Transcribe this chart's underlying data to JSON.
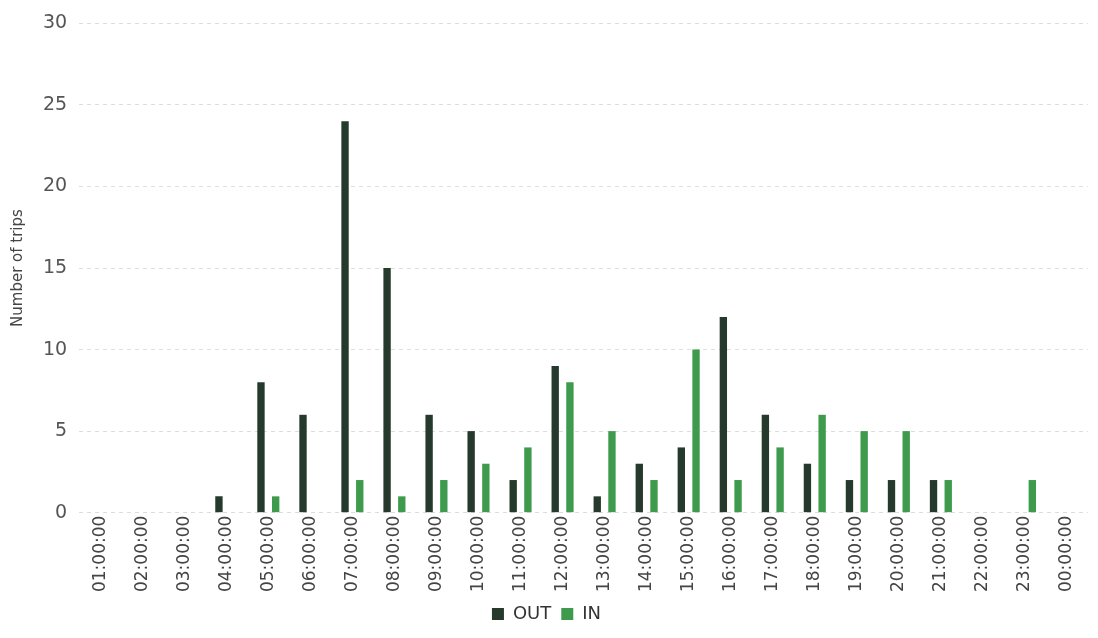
{
  "chart_data": {
    "type": "bar",
    "ylabel": "Number of trips",
    "categories": [
      "01:00:00",
      "02:00:00",
      "03:00:00",
      "04:00:00",
      "05:00:00",
      "06:00:00",
      "07:00:00",
      "08:00:00",
      "09:00:00",
      "10:00:00",
      "11:00:00",
      "12:00:00",
      "13:00:00",
      "14:00:00",
      "15:00:00",
      "16:00:00",
      "17:00:00",
      "18:00:00",
      "19:00:00",
      "20:00:00",
      "21:00:00",
      "22:00:00",
      "23:00:00",
      "00:00:00"
    ],
    "series": [
      {
        "name": "OUT",
        "color": "#253a2c",
        "values": [
          0,
          0,
          0,
          1,
          8,
          6,
          24,
          15,
          6,
          5,
          2,
          9,
          1,
          3,
          4,
          12,
          6,
          3,
          2,
          2,
          2,
          0,
          0,
          0
        ]
      },
      {
        "name": "IN",
        "color": "#3e9a4c",
        "values": [
          0,
          0,
          0,
          0,
          1,
          0,
          2,
          1,
          2,
          3,
          4,
          8,
          5,
          2,
          10,
          2,
          4,
          6,
          5,
          5,
          2,
          0,
          2,
          0
        ]
      }
    ],
    "ylim": [
      0,
      30
    ],
    "yticks": [
      0,
      5,
      10,
      15,
      20,
      25,
      30
    ],
    "grid": "y",
    "legend": "bottom"
  }
}
